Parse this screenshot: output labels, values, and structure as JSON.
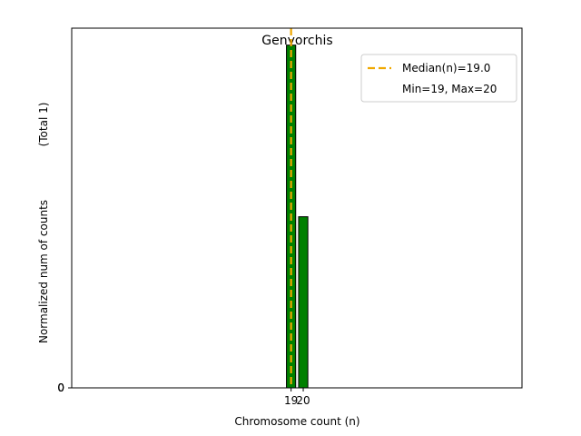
{
  "chart_data": {
    "type": "bar",
    "title": "Genyorchis",
    "xlabel": "Chromosome count (n)",
    "ylabel": "Normalized num of counts",
    "ylabel_note": "(Total 1)",
    "categories": [
      19,
      20
    ],
    "values": [
      0.667,
      0.333
    ],
    "x_ticks": [
      19,
      20
    ],
    "y_ticks": [
      "0",
      "0",
      "0"
    ],
    "xlim": [
      0.95,
      38.0
    ],
    "ylim": [
      0,
      0.7
    ],
    "bar_color": "#008000",
    "median": {
      "value": 19.0,
      "color": "#f0a800",
      "label": "Median(n)=19.0"
    },
    "legend": {
      "placement": "top-right",
      "entries": [
        "Median(n)=19.0",
        "Min=19, Max=20"
      ]
    },
    "grid": false
  }
}
